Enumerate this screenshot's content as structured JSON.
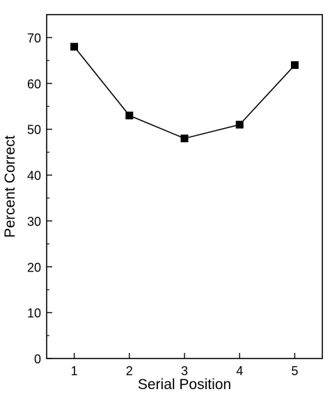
{
  "chart_data": {
    "type": "line",
    "title": "",
    "xlabel": "Serial Position",
    "ylabel": "Percent Correct",
    "x": [
      1,
      2,
      3,
      4,
      5
    ],
    "series": [
      {
        "values": [
          68,
          53,
          48,
          51,
          64
        ]
      }
    ],
    "xlim": [
      0.5,
      5.5
    ],
    "ylim": [
      0,
      75
    ],
    "xticks": [
      1,
      2,
      3,
      4,
      5
    ],
    "xtick_labels": [
      "1",
      "2",
      "3",
      "4",
      "5"
    ],
    "yticks": [
      0,
      10,
      20,
      30,
      40,
      50,
      60,
      70
    ],
    "ytick_labels": [
      "0",
      "10",
      "20",
      "30",
      "40",
      "50",
      "60",
      "70"
    ],
    "grid": false,
    "legend": "none",
    "marker": "square",
    "colors": {
      "line": "#000000",
      "marker": "#000000",
      "axes": "#000000"
    }
  }
}
